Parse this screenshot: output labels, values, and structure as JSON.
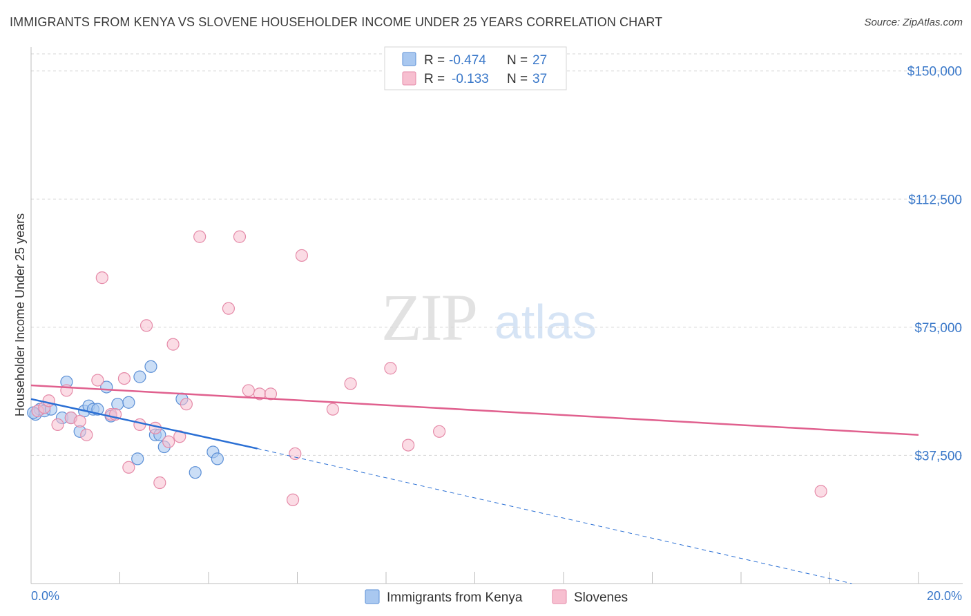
{
  "title": "IMMIGRANTS FROM KENYA VS SLOVENE HOUSEHOLDER INCOME UNDER 25 YEARS CORRELATION CHART",
  "source": "Source: ZipAtlas.com",
  "watermark": {
    "zip": "ZIP",
    "atlas": "atlas"
  },
  "colors": {
    "kenya_fill": "#a9c8f0",
    "kenya_stroke": "#5b8fd6",
    "kenya_line": "#2a6fd4",
    "slovene_fill": "#f7bfd0",
    "slovene_stroke": "#e58aa8",
    "slovene_line": "#e0608e",
    "tick_text": "#3a78c9",
    "grid": "#d6d6d6"
  },
  "legend": {
    "row1": {
      "r_label": "R = ",
      "r_value": "-0.474",
      "n_label": "N = ",
      "n_value": "27"
    },
    "row2": {
      "r_label": "R = ",
      "r_value": "-0.133",
      "n_label": "N = ",
      "n_value": "37"
    }
  },
  "chart_data": {
    "type": "scatter",
    "title": "IMMIGRANTS FROM KENYA VS SLOVENE HOUSEHOLDER INCOME UNDER 25 YEARS CORRELATION CHART",
    "xlabel": "",
    "ylabel": "Householder Income Under 25 years",
    "xlim": [
      0,
      20
    ],
    "ylim": [
      0,
      155000
    ],
    "x_tick_labels": [
      "0.0%",
      "20.0%"
    ],
    "y_ticks": [
      37500,
      75000,
      112500,
      150000
    ],
    "y_tick_labels": [
      "$37,500",
      "$75,000",
      "$112,500",
      "$150,000"
    ],
    "series": [
      {
        "name": "Immigrants from Kenya",
        "points": [
          [
            0.1,
            49500
          ],
          [
            0.2,
            51000
          ],
          [
            0.3,
            50500
          ],
          [
            0.45,
            51000
          ],
          [
            0.7,
            48500
          ],
          [
            0.8,
            59000
          ],
          [
            0.9,
            48500
          ],
          [
            1.1,
            44500
          ],
          [
            1.2,
            50500
          ],
          [
            1.3,
            52000
          ],
          [
            1.4,
            51000
          ],
          [
            1.5,
            51000
          ],
          [
            1.7,
            57500
          ],
          [
            1.8,
            49000
          ],
          [
            1.95,
            52500
          ],
          [
            2.2,
            53000
          ],
          [
            2.4,
            36500
          ],
          [
            2.45,
            60500
          ],
          [
            2.7,
            63500
          ],
          [
            2.8,
            43500
          ],
          [
            2.9,
            43500
          ],
          [
            3.0,
            40000
          ],
          [
            3.4,
            54000
          ],
          [
            3.7,
            32500
          ],
          [
            4.1,
            38500
          ],
          [
            4.2,
            36500
          ],
          [
            0.05,
            50000
          ]
        ],
        "trend": {
          "x": [
            0,
            5.1
          ],
          "y": [
            54000,
            39500
          ],
          "dashed_to": [
            18.5,
            0
          ]
        }
      },
      {
        "name": "Slovenes",
        "points": [
          [
            0.15,
            50500
          ],
          [
            0.3,
            51500
          ],
          [
            0.4,
            53500
          ],
          [
            0.6,
            46500
          ],
          [
            0.8,
            56500
          ],
          [
            0.9,
            48500
          ],
          [
            1.1,
            47500
          ],
          [
            1.25,
            43500
          ],
          [
            1.5,
            59500
          ],
          [
            1.6,
            89500
          ],
          [
            1.8,
            49500
          ],
          [
            1.9,
            49500
          ],
          [
            2.1,
            60000
          ],
          [
            2.2,
            34000
          ],
          [
            2.45,
            46500
          ],
          [
            2.6,
            75500
          ],
          [
            2.8,
            45500
          ],
          [
            2.9,
            29500
          ],
          [
            3.1,
            41500
          ],
          [
            3.2,
            70000
          ],
          [
            3.35,
            43000
          ],
          [
            3.5,
            52500
          ],
          [
            3.8,
            101500
          ],
          [
            4.45,
            80500
          ],
          [
            4.7,
            101500
          ],
          [
            4.9,
            56500
          ],
          [
            5.15,
            55500
          ],
          [
            5.4,
            55500
          ],
          [
            5.9,
            24500
          ],
          [
            5.95,
            38000
          ],
          [
            6.1,
            96000
          ],
          [
            6.8,
            51000
          ],
          [
            7.2,
            58500
          ],
          [
            8.1,
            63000
          ],
          [
            8.5,
            40500
          ],
          [
            9.2,
            44500
          ],
          [
            17.8,
            27000
          ]
        ],
        "trend": {
          "x": [
            0,
            20
          ],
          "y": [
            58000,
            43500
          ]
        }
      }
    ]
  },
  "bottom_legend": {
    "kenya": "Immigrants from Kenya",
    "slovene": "Slovenes"
  }
}
